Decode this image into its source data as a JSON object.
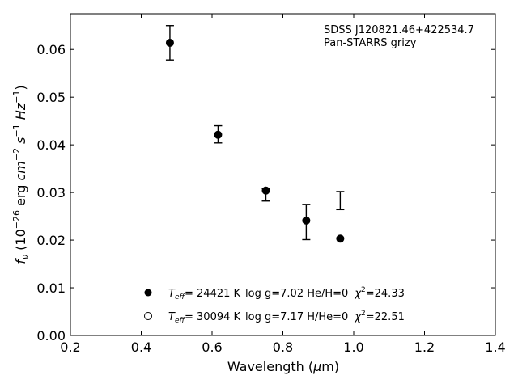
{
  "chart_data": {
    "type": "scatter",
    "xlabel": "Wavelength (μm)",
    "ylabel": "f_ν (10^−26 erg cm^−2 s^−1 Hz^−1)",
    "xlim": [
      0.2,
      1.4
    ],
    "ylim": [
      0.0,
      0.0675
    ],
    "xticks": [
      "0.2",
      "0.4",
      "0.6",
      "0.8",
      "1.0",
      "1.2",
      "1.4"
    ],
    "yticks": [
      "0.00",
      "0.01",
      "0.02",
      "0.03",
      "0.04",
      "0.05",
      "0.06"
    ],
    "xtick_values": [
      0.2,
      0.4,
      0.6,
      0.8,
      1.0,
      1.2,
      1.4
    ],
    "ytick_values": [
      0.0,
      0.01,
      0.02,
      0.03,
      0.04,
      0.05,
      0.06
    ],
    "annotation": [
      "SDSS J120821.46+422534.7",
      "Pan-STARRS grizy"
    ],
    "observed": {
      "x": [
        0.481,
        0.617,
        0.752,
        0.866,
        0.962
      ],
      "y": [
        0.0614,
        0.0422,
        0.0295,
        0.0238,
        0.0283
      ],
      "err": [
        0.0036,
        0.0018,
        0.0013,
        0.0037,
        0.0019
      ]
    },
    "series": [
      {
        "marker": "filled-circle",
        "legend": {
          "teff_value": "= 24421 K",
          "params": "log g=7.02  He/H=0",
          "chi": "=24.33"
        },
        "x": [
          0.481,
          0.617,
          0.752,
          0.866,
          0.962
        ],
        "y": [
          0.0614,
          0.0421,
          0.0304,
          0.0241,
          0.0203
        ]
      },
      {
        "marker": "open-circle",
        "legend": {
          "teff_value": "= 30094 K",
          "params": "log g=7.17  H/He=0",
          "chi": "=22.51"
        },
        "x": [
          0.481,
          0.617,
          0.752,
          0.866,
          0.962
        ],
        "y": [
          0.0614,
          0.0421,
          0.0304,
          0.0241,
          0.0203
        ]
      }
    ],
    "grid": false,
    "legend_position": "bottom-center"
  },
  "colors": {
    "axis": "#000000",
    "marker": "#000000",
    "background": "#ffffff"
  }
}
